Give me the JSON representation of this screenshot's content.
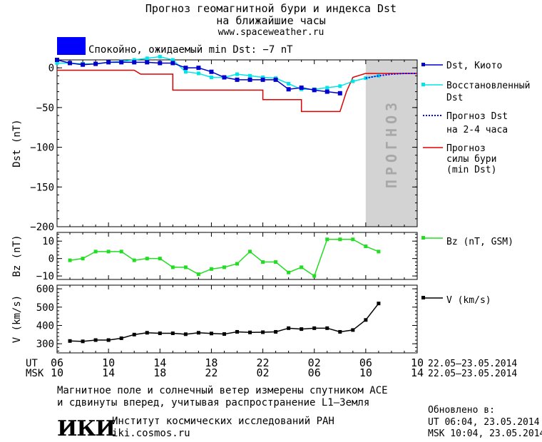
{
  "header": {
    "title_line1": "Прогноз геомагнитной бури и индекса Dst",
    "title_line2": "на ближайшие часы",
    "url": "www.spaceweather.ru",
    "status": "Спокойно, ожидаемый min Dst: −7 nT",
    "status_color": "#0000ff"
  },
  "forecast_label": "ПРОГНОЗ",
  "legend": {
    "dst_kyoto": "Dst, Киото",
    "restored_1": "Восстановленный",
    "restored_2": "Dst",
    "forecast_1": "Прогноз Dst",
    "forecast_2": "на 2-4 часа",
    "storm_1": "Прогноз",
    "storm_2": "силы бури",
    "storm_3": "(min Dst)",
    "bz": "Bz (nT, GSM)",
    "v": "V (km/s)"
  },
  "axes": {
    "dst_ylabel": "Dst (nT)",
    "bz_ylabel": "Bz (nT)",
    "v_ylabel": "V (km/s)",
    "ut_label": "UT",
    "msk_label": "MSK",
    "ut_ticks": [
      "06",
      "10",
      "14",
      "18",
      "22",
      "02",
      "06",
      "10"
    ],
    "msk_ticks": [
      "10",
      "14",
      "18",
      "22",
      "02",
      "06",
      "10",
      "14"
    ],
    "date_range_ut": "22.05–23.05.2014",
    "date_range_msk": "22.05–23.05.2014"
  },
  "footer": {
    "note_line1": "Магнитное поле и солнечный ветер измерены спутником ACE",
    "note_line2": "и сдвинуты вперед, учитывая распространение L1–Земля",
    "institute": "Институт космических исследований РАН",
    "site": "iki.cosmos.ru",
    "logo_text": "ИКИ",
    "updated_label": "Обновлено в:",
    "updated_ut": "UT  06:04, 23.05.2014",
    "updated_msk": "MSK 10:04, 23.05.2014"
  },
  "colors": {
    "dst_kyoto": "#0000cc",
    "restored": "#00e5e5",
    "forecast": "#0000ff",
    "storm": "#dd0000",
    "bz": "#22dd22",
    "v": "#000000",
    "forecast_band": "#d3d3d3"
  },
  "chart_data": [
    {
      "type": "line",
      "panel": "dst",
      "x_unit": "hours since 22.05.2014 06 UT",
      "xlim": [
        0,
        28
      ],
      "ylim": [
        -200,
        10
      ],
      "yticks": [
        0,
        -50,
        -100,
        -150,
        -200
      ],
      "forecast_region": [
        24,
        28
      ],
      "series": [
        {
          "name": "Dst, Киото",
          "x": [
            0,
            1,
            2,
            3,
            4,
            5,
            6,
            7,
            8,
            9,
            10,
            11,
            12,
            13,
            14,
            15,
            16,
            17,
            18,
            19,
            20,
            21,
            22
          ],
          "y": [
            10,
            6,
            4,
            5,
            7,
            7,
            7,
            7,
            6,
            6,
            0,
            0,
            -5,
            -12,
            -15,
            -15,
            -15,
            -15,
            -27,
            -25,
            -28,
            -30,
            -32
          ]
        },
        {
          "name": "Восстановленный Dst",
          "x": [
            0,
            1,
            2,
            3,
            4,
            5,
            6,
            7,
            8,
            9,
            10,
            11,
            12,
            13,
            14,
            15,
            16,
            17,
            18,
            19,
            20,
            21,
            22,
            23,
            24,
            25
          ],
          "y": [
            6,
            6,
            5,
            5,
            7,
            8,
            10,
            12,
            14,
            10,
            -5,
            -7,
            -12,
            -12,
            -8,
            -10,
            -12,
            -13,
            -20,
            -27,
            -27,
            -25,
            -23,
            -17,
            -13,
            -10
          ]
        },
        {
          "name": "Прогноз Dst на 2-4 часа",
          "x": [
            24,
            25,
            26,
            27,
            28
          ],
          "y": [
            -13,
            -10,
            -8,
            -7,
            -7
          ]
        },
        {
          "name": "Прогноз силы бури (min Dst)",
          "x": [
            0,
            6,
            6.5,
            7.5,
            8,
            9,
            9,
            14,
            14.5,
            15,
            16,
            16,
            19,
            19,
            21.5,
            22,
            22.5,
            23,
            24,
            28
          ],
          "y": [
            -3,
            -3,
            -8,
            -8,
            -8,
            -8,
            -28,
            -28,
            -28,
            -28,
            -28,
            -40,
            -40,
            -55,
            -55,
            -55,
            -30,
            -12,
            -7,
            -7
          ]
        }
      ]
    },
    {
      "type": "line",
      "panel": "bz",
      "ylim": [
        -12,
        15
      ],
      "yticks": [
        10,
        0,
        -10
      ],
      "series": [
        {
          "name": "Bz (nT, GSM)",
          "x": [
            1,
            2,
            3,
            4,
            5,
            6,
            7,
            8,
            9,
            10,
            11,
            12,
            13,
            14,
            15,
            16,
            17,
            18,
            19,
            20,
            21,
            22,
            23,
            24,
            25
          ],
          "y": [
            -1,
            0,
            4,
            4,
            4,
            -1,
            0,
            0,
            -5,
            -5,
            -9,
            -6,
            -5,
            -3,
            4,
            -2,
            -2,
            -8,
            -5,
            -10,
            11,
            11,
            11,
            7,
            4
          ]
        }
      ]
    },
    {
      "type": "line",
      "panel": "v",
      "ylim": [
        250,
        620
      ],
      "yticks": [
        600,
        500,
        400,
        300
      ],
      "series": [
        {
          "name": "V (km/s)",
          "x": [
            1,
            2,
            3,
            4,
            5,
            6,
            7,
            8,
            9,
            10,
            11,
            12,
            13,
            14,
            15,
            16,
            17,
            18,
            19,
            20,
            21,
            22,
            23,
            24,
            25
          ],
          "y": [
            315,
            313,
            320,
            320,
            330,
            350,
            360,
            357,
            357,
            352,
            360,
            356,
            353,
            365,
            362,
            363,
            365,
            385,
            380,
            385,
            385,
            365,
            375,
            430,
            520
          ]
        }
      ]
    }
  ]
}
